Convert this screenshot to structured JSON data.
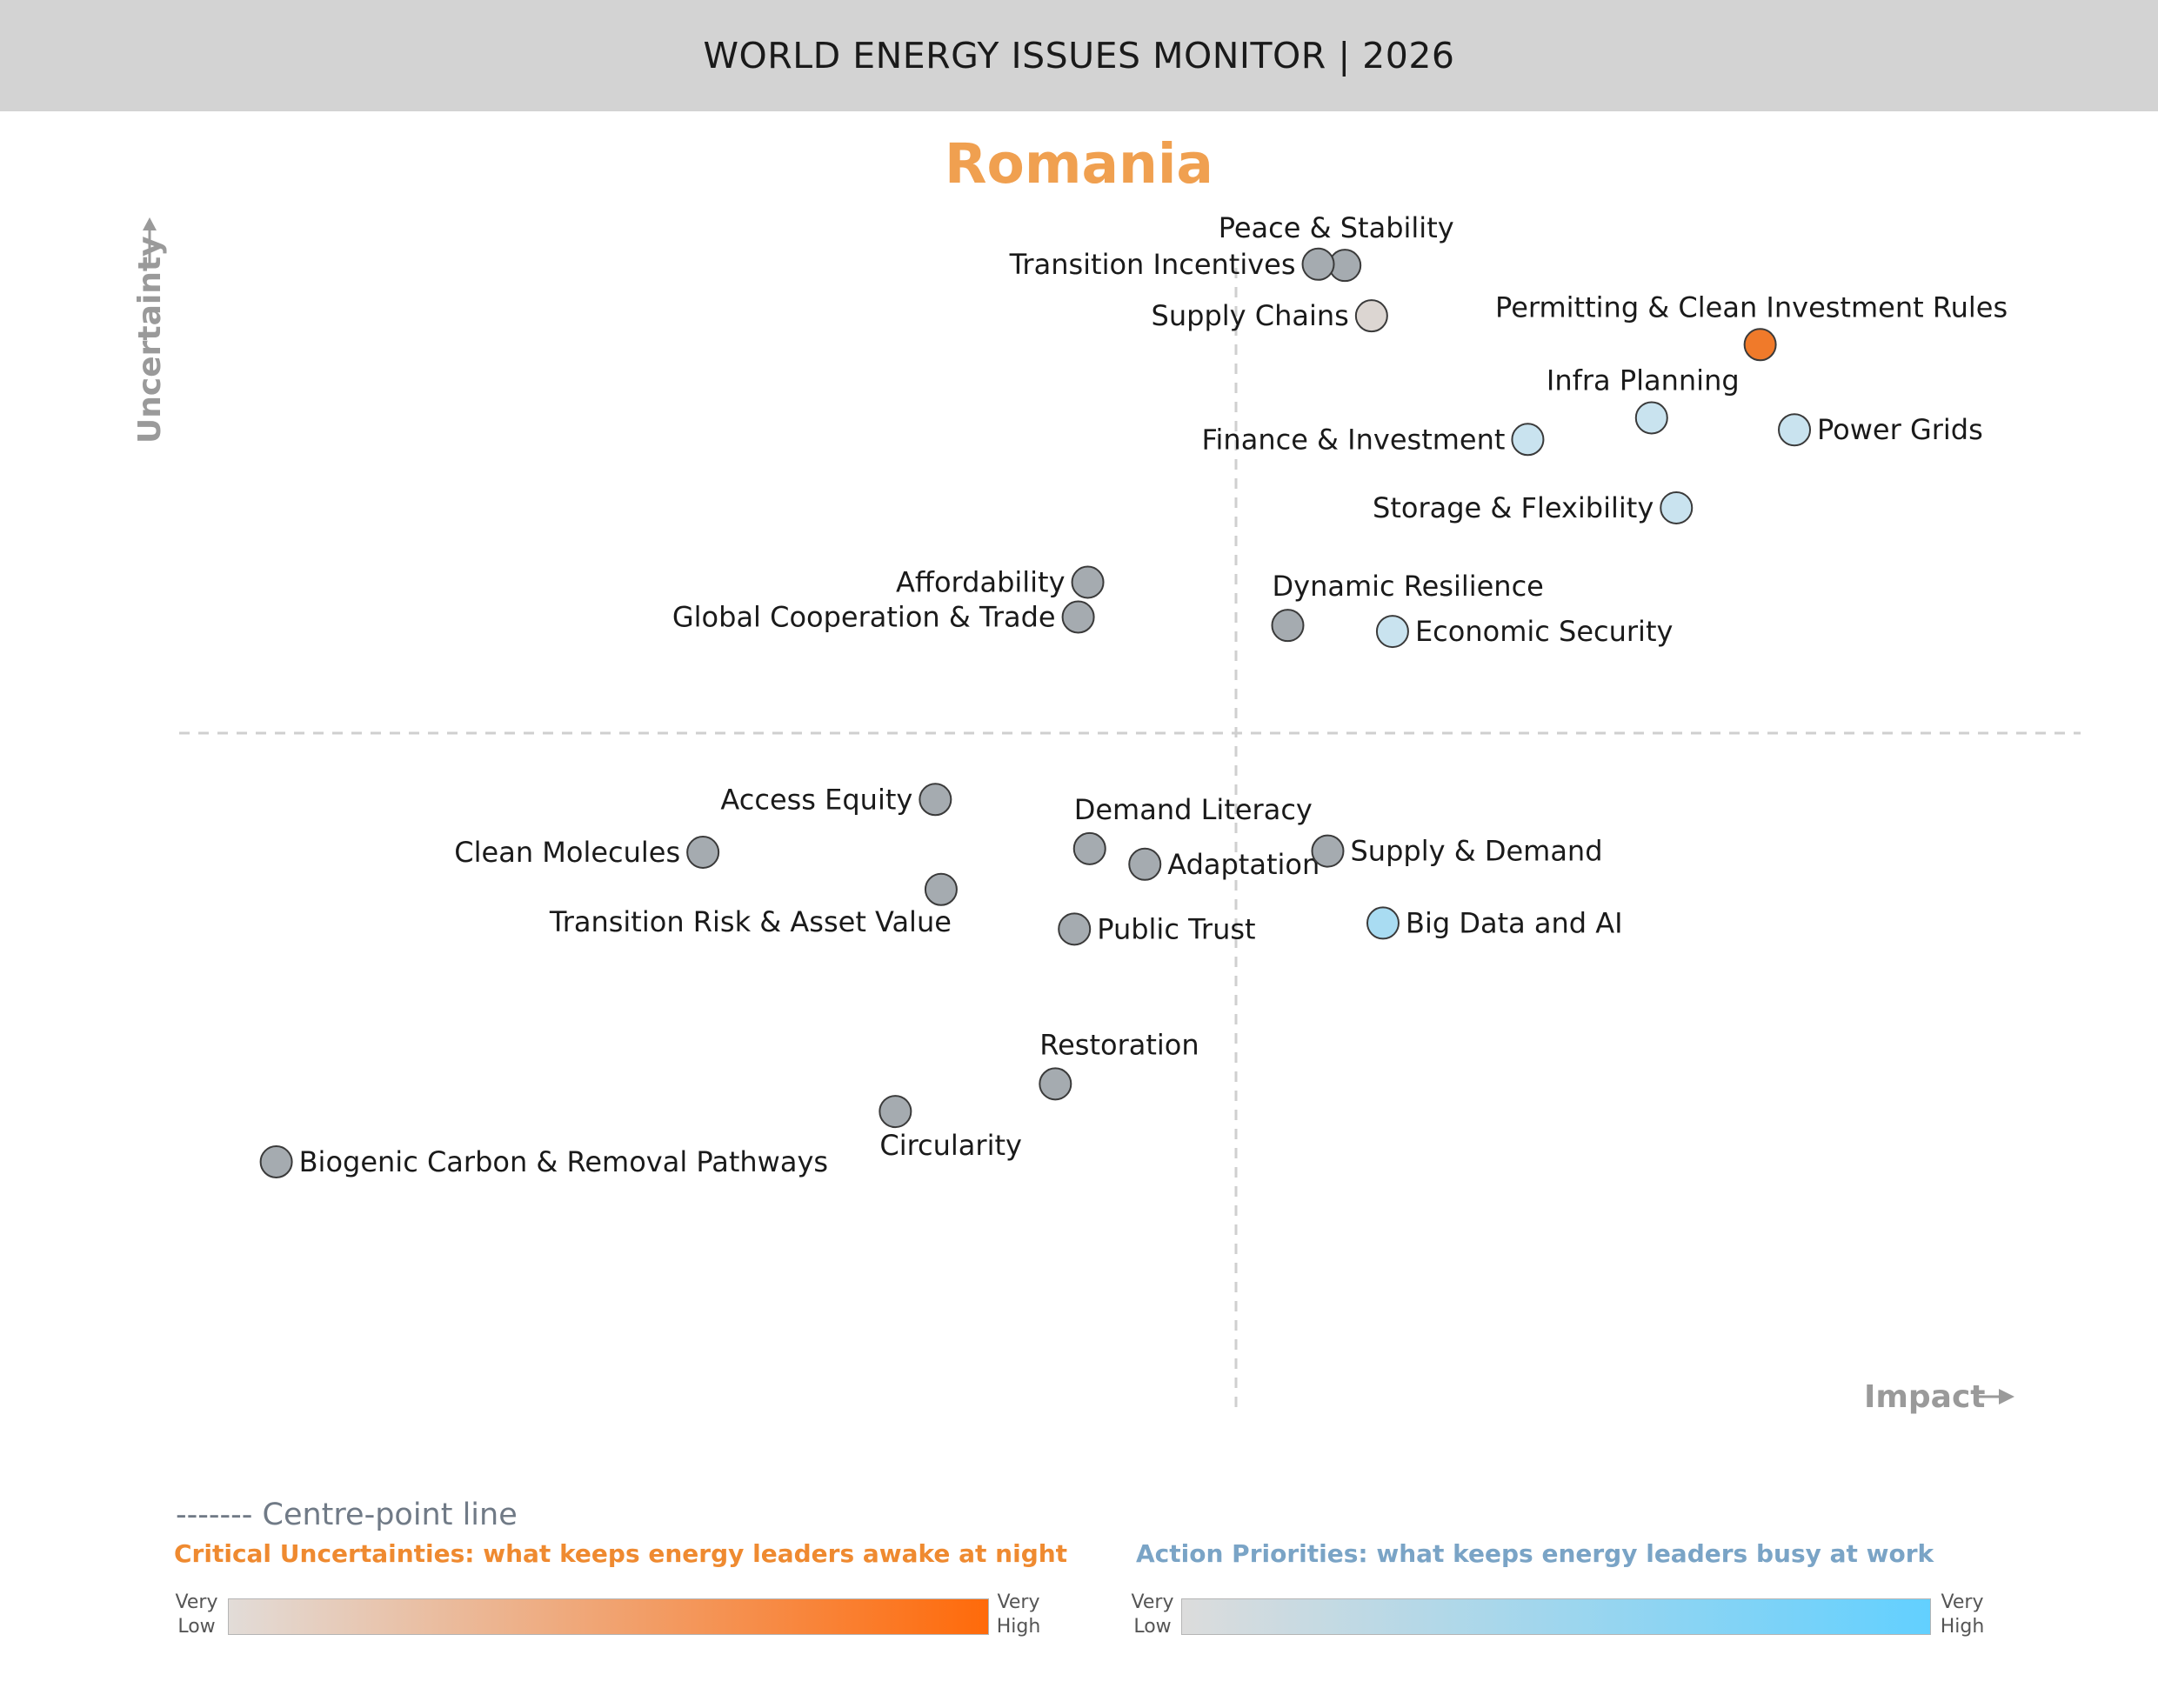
{
  "header": {
    "title": "WORLD ENERGY ISSUES MONITOR | 2026"
  },
  "country": "Romania",
  "colors": {
    "neutral": "#a5abb0",
    "uncertainty_high": "#f07a2a",
    "action_low": "#c9e3ef",
    "action_mid": "#a9dcf2",
    "beige": "#dcd6d2"
  },
  "chart_data": {
    "type": "scatter",
    "title": "Romania",
    "xlabel": "Impact",
    "ylabel": "Uncertainty",
    "xlim": [
      0,
      100
    ],
    "ylim": [
      0,
      100
    ],
    "centre_x": 50,
    "centre_y": 50,
    "points": [
      {
        "name": "Peace & Stability",
        "x": 60.1,
        "y": 88.9,
        "color": "#a5abb0"
      },
      {
        "name": "Transition Incentives",
        "x": 58.7,
        "y": 89.0,
        "color": "#a5abb0"
      },
      {
        "name": "Supply Chains",
        "x": 61.5,
        "y": 84.7,
        "color": "#dcd6d2"
      },
      {
        "name": "Permitting & Clean Investment Rules",
        "x": 81.9,
        "y": 82.3,
        "color": "#f07a2a"
      },
      {
        "name": "Infra Planning",
        "x": 76.2,
        "y": 76.2,
        "color": "#c9e3ef"
      },
      {
        "name": "Power Grids",
        "x": 83.7,
        "y": 75.2,
        "color": "#c9e3ef"
      },
      {
        "name": "Finance & Investment",
        "x": 69.7,
        "y": 74.4,
        "color": "#c9e3ef"
      },
      {
        "name": "Storage & Flexibility",
        "x": 77.5,
        "y": 68.7,
        "color": "#c9e3ef"
      },
      {
        "name": "Affordability",
        "x": 46.6,
        "y": 62.5,
        "color": "#a5abb0"
      },
      {
        "name": "Global Cooperation & Trade",
        "x": 46.1,
        "y": 59.6,
        "color": "#a5abb0"
      },
      {
        "name": "Dynamic Resilience",
        "x": 57.1,
        "y": 58.9,
        "color": "#a5abb0"
      },
      {
        "name": "Economic Security",
        "x": 62.6,
        "y": 58.4,
        "color": "#c9e3ef"
      },
      {
        "name": "Access Equity",
        "x": 38.6,
        "y": 44.4,
        "color": "#a5abb0"
      },
      {
        "name": "Clean Molecules",
        "x": 26.4,
        "y": 40.0,
        "color": "#a5abb0"
      },
      {
        "name": "Demand Literacy",
        "x": 46.7,
        "y": 40.3,
        "color": "#a5abb0"
      },
      {
        "name": "Adaptation",
        "x": 49.6,
        "y": 39.0,
        "color": "#a5abb0"
      },
      {
        "name": "Supply & Demand",
        "x": 59.2,
        "y": 40.1,
        "color": "#a5abb0"
      },
      {
        "name": "Transition Risk & Asset Value",
        "x": 38.9,
        "y": 36.9,
        "color": "#a5abb0"
      },
      {
        "name": "Public Trust",
        "x": 45.9,
        "y": 33.6,
        "color": "#a5abb0"
      },
      {
        "name": "Big Data and AI",
        "x": 62.1,
        "y": 34.1,
        "color": "#a9dcf2"
      },
      {
        "name": "Restoration",
        "x": 44.9,
        "y": 20.7,
        "color": "#a5abb0"
      },
      {
        "name": "Circularity",
        "x": 36.5,
        "y": 18.4,
        "color": "#a5abb0"
      },
      {
        "name": "Biogenic Carbon & Removal Pathways",
        "x": 4.0,
        "y": 14.2,
        "color": "#a5abb0"
      }
    ]
  },
  "legend": {
    "centre_line": "------- Centre-point line",
    "uncertainties_title": "Critical Uncertainties: what keeps energy leaders awake at night",
    "priorities_title": "Action Priorities: what keeps energy leaders busy at work",
    "very": "Very",
    "low": "Low",
    "high": "High"
  }
}
